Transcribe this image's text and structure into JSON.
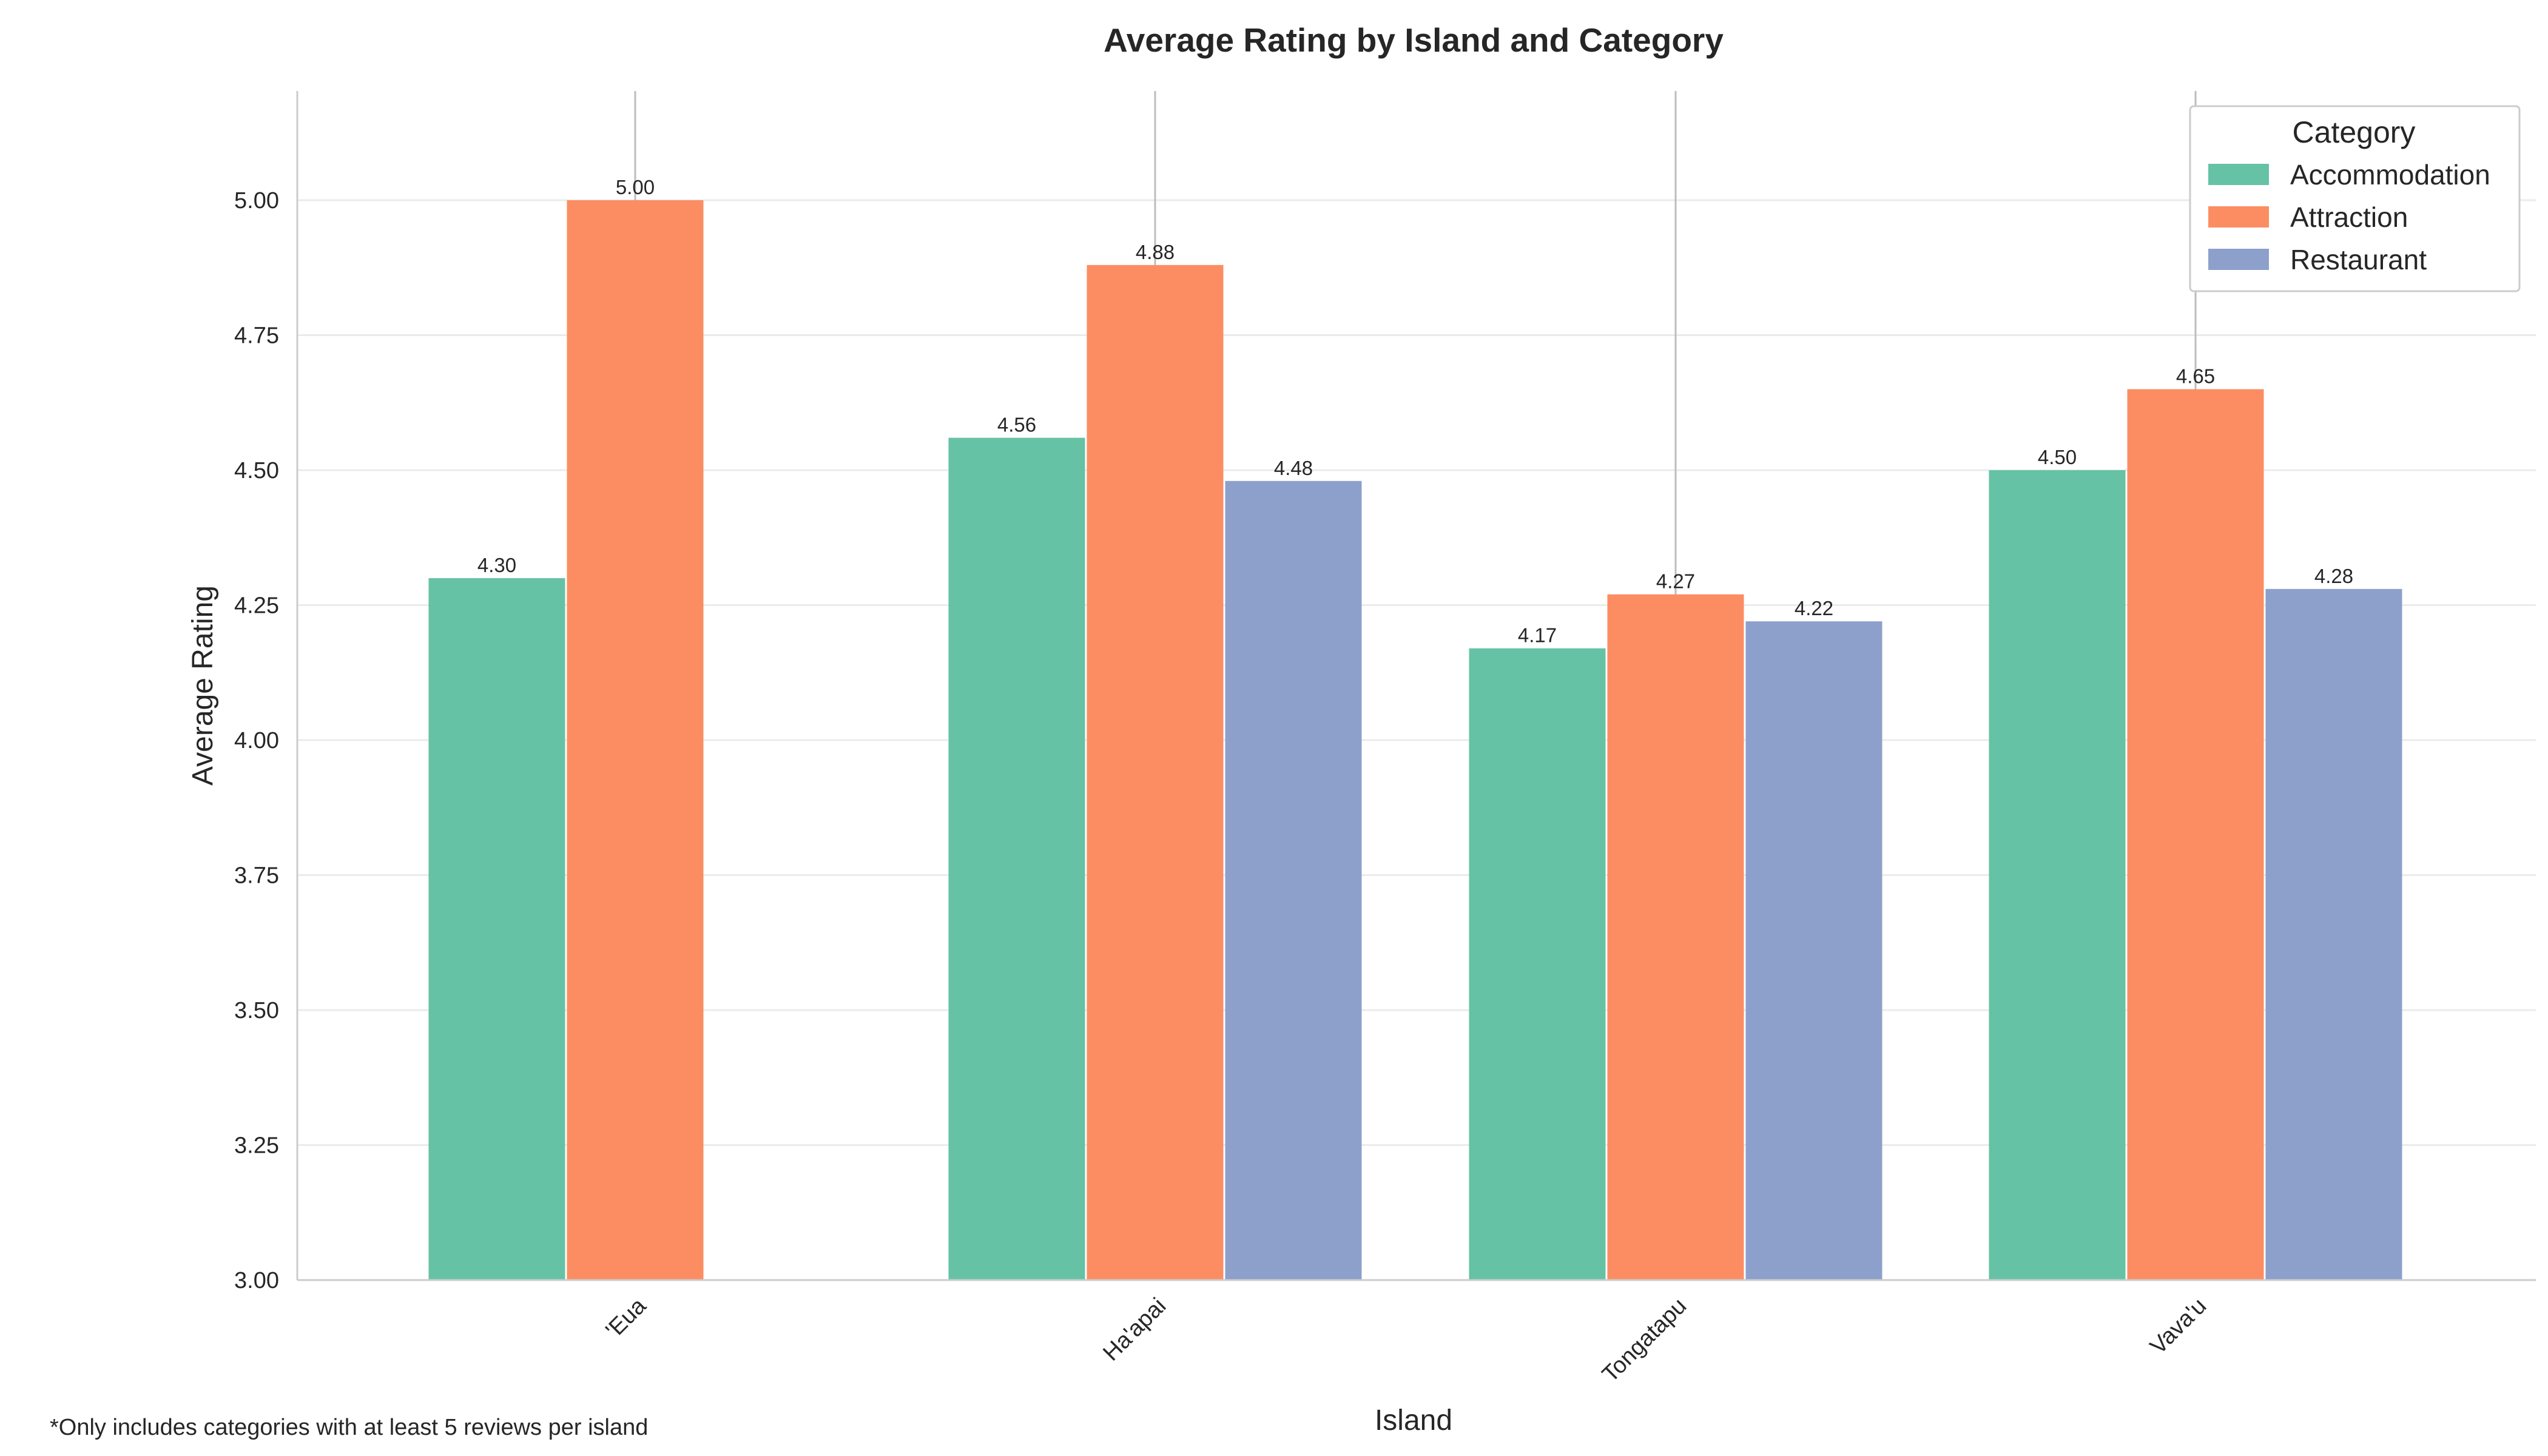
{
  "chart_data": {
    "type": "bar",
    "title": "Average Rating by Island and Category",
    "xlabel": "Island",
    "ylabel": "Average Rating",
    "ylim": [
      3.0,
      5.2
    ],
    "yticks": [
      "3.00",
      "3.25",
      "3.50",
      "3.75",
      "4.00",
      "4.25",
      "4.50",
      "4.75",
      "5.00"
    ],
    "categories": [
      "'Eua",
      "Ha'apai",
      "Tongatapu",
      "Vava'u"
    ],
    "series": [
      {
        "name": "Accommodation",
        "color": "#66c2a5",
        "values": [
          4.3,
          4.56,
          4.17,
          4.5
        ],
        "labels": [
          "4.30",
          "4.56",
          "4.17",
          "4.50"
        ]
      },
      {
        "name": "Attraction",
        "color": "#fc8d62",
        "values": [
          5.0,
          4.88,
          4.27,
          4.65
        ],
        "labels": [
          "5.00",
          "4.88",
          "4.27",
          "4.65"
        ]
      },
      {
        "name": "Restaurant",
        "color": "#8da0cb",
        "values": [
          null,
          4.48,
          4.22,
          4.28
        ],
        "labels": [
          null,
          "4.48",
          "4.22",
          "4.28"
        ]
      }
    ],
    "grid": true,
    "legend": {
      "title": "Category",
      "placement": "top-right"
    },
    "footnote": "*Only includes categories with at least 5 reviews per island"
  }
}
